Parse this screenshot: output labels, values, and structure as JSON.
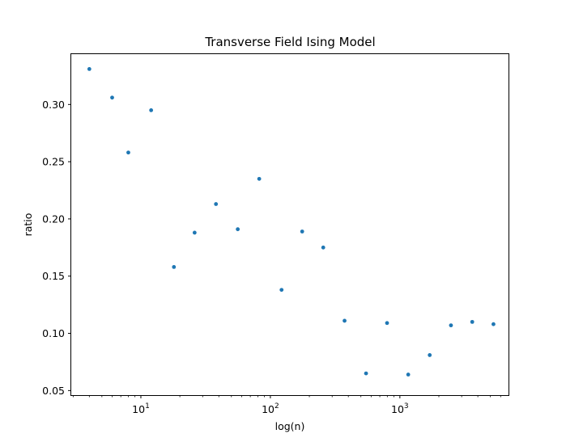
{
  "chart_data": {
    "type": "scatter",
    "title": "Transverse Field Ising Model",
    "xlabel": "log(n)",
    "ylabel": "ratio",
    "x_scale": "log",
    "xlim": [
      2.9,
      6900
    ],
    "ylim": [
      0.046,
      0.344
    ],
    "grid": false,
    "marker_color": "#1f77b4",
    "x_ticks": [
      {
        "value": 10,
        "base": "10",
        "exp": "1"
      },
      {
        "value": 100,
        "base": "10",
        "exp": "2"
      },
      {
        "value": 1000,
        "base": "10",
        "exp": "3"
      }
    ],
    "y_ticks": [
      {
        "value": 0.05,
        "label": "0.05"
      },
      {
        "value": 0.1,
        "label": "0.10"
      },
      {
        "value": 0.15,
        "label": "0.15"
      },
      {
        "value": 0.2,
        "label": "0.20"
      },
      {
        "value": 0.25,
        "label": "0.25"
      },
      {
        "value": 0.3,
        "label": "0.30"
      }
    ],
    "points": [
      {
        "x": 4,
        "y": 0.331
      },
      {
        "x": 6,
        "y": 0.306
      },
      {
        "x": 8,
        "y": 0.258
      },
      {
        "x": 12,
        "y": 0.295
      },
      {
        "x": 18,
        "y": 0.158
      },
      {
        "x": 26,
        "y": 0.188
      },
      {
        "x": 38,
        "y": 0.213
      },
      {
        "x": 56,
        "y": 0.191
      },
      {
        "x": 82,
        "y": 0.235
      },
      {
        "x": 122,
        "y": 0.138
      },
      {
        "x": 176,
        "y": 0.189
      },
      {
        "x": 256,
        "y": 0.175
      },
      {
        "x": 374,
        "y": 0.111
      },
      {
        "x": 548,
        "y": 0.065
      },
      {
        "x": 796,
        "y": 0.109
      },
      {
        "x": 1160,
        "y": 0.064
      },
      {
        "x": 1700,
        "y": 0.081
      },
      {
        "x": 2480,
        "y": 0.107
      },
      {
        "x": 3620,
        "y": 0.11
      },
      {
        "x": 5280,
        "y": 0.108
      }
    ]
  }
}
